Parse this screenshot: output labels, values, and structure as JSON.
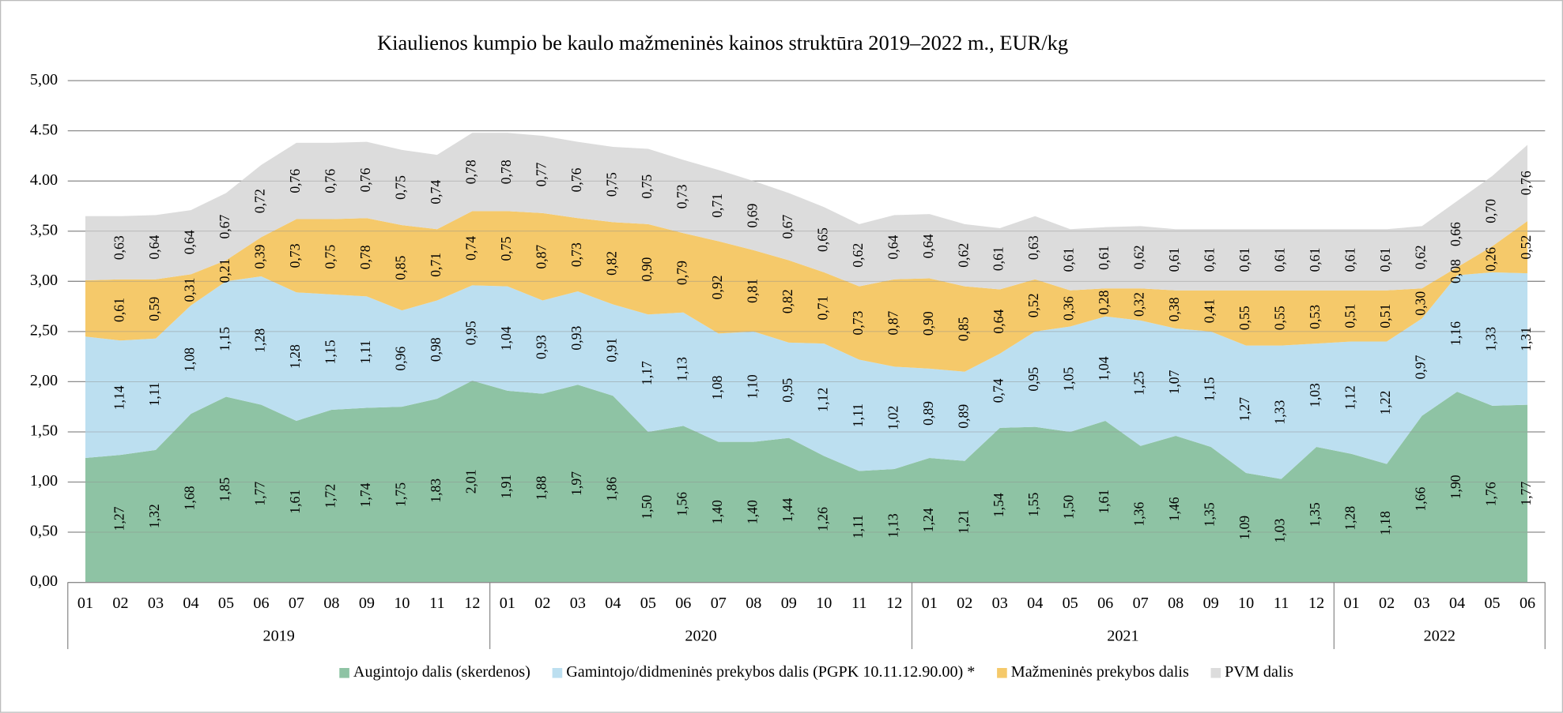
{
  "chart_data": {
    "type": "stacked_area",
    "title": "Kiaulienos kumpio be kaulo mažmeninės kainos struktūra 2019–2022 m., EUR/kg",
    "categories": [
      "01",
      "02",
      "03",
      "04",
      "05",
      "06",
      "07",
      "08",
      "09",
      "10",
      "11",
      "12",
      "01",
      "02",
      "03",
      "04",
      "05",
      "06",
      "07",
      "08",
      "09",
      "10",
      "11",
      "12",
      "01",
      "02",
      "03",
      "04",
      "05",
      "06",
      "07",
      "08",
      "09",
      "10",
      "11",
      "12",
      "01",
      "02",
      "03",
      "04",
      "05",
      "06"
    ],
    "years": [
      "2019",
      "2020",
      "2021",
      "2022"
    ],
    "ylim": [
      0,
      5
    ],
    "yticks": [
      {
        "value": 0,
        "label": "0,00"
      },
      {
        "value": 0.5,
        "label": "0,50"
      },
      {
        "value": 1,
        "label": "1,00"
      },
      {
        "value": 1.5,
        "label": "1,50"
      },
      {
        "value": 2,
        "label": "2,00"
      },
      {
        "value": 2.5,
        "label": "2,50"
      },
      {
        "value": 3,
        "label": "3,00"
      },
      {
        "value": 3.5,
        "label": "3,50"
      },
      {
        "value": 4,
        "label": "4.00"
      },
      {
        "value": 4.5,
        "label": "4.50"
      },
      {
        "value": 5,
        "label": "5,00"
      }
    ],
    "grid": true,
    "legend": "bottom",
    "series": [
      {
        "name": "Augintojo dalis (skerdenos)",
        "color": "#8ec3a4",
        "values": [
          1.24,
          1.27,
          1.32,
          1.68,
          1.85,
          1.77,
          1.61,
          1.72,
          1.74,
          1.75,
          1.83,
          2.01,
          1.91,
          1.88,
          1.97,
          1.86,
          1.5,
          1.56,
          1.4,
          1.4,
          1.44,
          1.26,
          1.11,
          1.13,
          1.24,
          1.21,
          1.54,
          1.55,
          1.5,
          1.61,
          1.36,
          1.46,
          1.35,
          1.09,
          1.03,
          1.35,
          1.28,
          1.18,
          1.66,
          1.9,
          1.76,
          1.77
        ],
        "value_labels": [
          null,
          "1,27",
          "1,32",
          "1,68",
          "1,85",
          "1,77",
          "1,61",
          "1,72",
          "1,74",
          "1,75",
          "1,83",
          "2,01",
          "1,91",
          "1,88",
          "1,97",
          "1,86",
          "1,50",
          "1,56",
          "1,40",
          "1,40",
          "1,44",
          "1,26",
          "1,11",
          "1,13",
          "1,24",
          "1,21",
          "1,54",
          "1,55",
          "1,50",
          "1,61",
          "1,36",
          "1,46",
          "1,35",
          "1,09",
          "1,03",
          "1,35",
          "1,28",
          "1,18",
          "1,66",
          "1,90",
          "1,76",
          "1,77"
        ]
      },
      {
        "name": "Gamintojo/didmeninės prekybos dalis (PGPK 10.11.12.90.00) *",
        "color": "#bcdff0",
        "values": [
          1.21,
          1.14,
          1.11,
          1.08,
          1.15,
          1.28,
          1.28,
          1.15,
          1.11,
          0.96,
          0.98,
          0.95,
          1.04,
          0.93,
          0.93,
          0.91,
          1.17,
          1.13,
          1.08,
          1.1,
          0.95,
          1.12,
          1.11,
          1.02,
          0.89,
          0.89,
          0.74,
          0.95,
          1.05,
          1.04,
          1.25,
          1.07,
          1.15,
          1.27,
          1.33,
          1.03,
          1.12,
          1.22,
          0.97,
          1.16,
          1.33,
          1.31
        ],
        "value_labels": [
          null,
          "1,14",
          "1,11",
          "1,08",
          "1,15",
          "1,28",
          "1,28",
          "1,15",
          "1,11",
          "0,96",
          "0,98",
          "0,95",
          "1,04",
          "0,93",
          "0,93",
          "0,91",
          "1,17",
          "1,13",
          "1,08",
          "1,10",
          "0,95",
          "1,12",
          "1,11",
          "1,02",
          "0,89",
          "0,89",
          "0,74",
          "0,95",
          "1,05",
          "1,04",
          "1,25",
          "1,07",
          "1,15",
          "1,27",
          "1,33",
          "1,03",
          "1,12",
          "1,22",
          "0,97",
          "1,16",
          "1,33",
          "1,31"
        ]
      },
      {
        "name": "Mažmeninės prekybos dalis",
        "color": "#f5c96a",
        "values": [
          0.56,
          0.61,
          0.59,
          0.31,
          0.21,
          0.39,
          0.73,
          0.75,
          0.78,
          0.85,
          0.71,
          0.74,
          0.75,
          0.87,
          0.73,
          0.82,
          0.9,
          0.79,
          0.92,
          0.81,
          0.82,
          0.71,
          0.73,
          0.87,
          0.9,
          0.85,
          0.64,
          0.52,
          0.36,
          0.28,
          0.32,
          0.38,
          0.41,
          0.55,
          0.55,
          0.53,
          0.51,
          0.51,
          0.3,
          0.08,
          0.26,
          0.52
        ],
        "value_labels": [
          null,
          "0,61",
          "0,59",
          "0,31",
          "0,21",
          "0,39",
          "0,73",
          "0,75",
          "0,78",
          "0,85",
          "0,71",
          "0,74",
          "0,75",
          "0,87",
          "0,73",
          "0,82",
          "0,90",
          "0,79",
          "0,92",
          "0,81",
          "0,82",
          "0,71",
          "0,73",
          "0,87",
          "0,90",
          "0,85",
          "0,64",
          "0,52",
          "0,36",
          "0,28",
          "0,32",
          "0,38",
          "0,41",
          "0,55",
          "0,55",
          "0,53",
          "0,51",
          "0,51",
          "0,30",
          "0,08",
          "0,26",
          "0,52"
        ]
      },
      {
        "name": "PVM dalis",
        "color": "#dcdcdc",
        "values": [
          0.64,
          0.63,
          0.64,
          0.64,
          0.67,
          0.72,
          0.76,
          0.76,
          0.76,
          0.75,
          0.74,
          0.78,
          0.78,
          0.77,
          0.76,
          0.75,
          0.75,
          0.73,
          0.71,
          0.69,
          0.67,
          0.65,
          0.62,
          0.64,
          0.64,
          0.62,
          0.61,
          0.63,
          0.61,
          0.61,
          0.62,
          0.61,
          0.61,
          0.61,
          0.61,
          0.61,
          0.61,
          0.61,
          0.62,
          0.66,
          0.7,
          0.76
        ],
        "value_labels": [
          null,
          "0,63",
          "0,64",
          "0,64",
          "0,67",
          "0,72",
          "0,76",
          "0,76",
          "0,76",
          "0,75",
          "0,74",
          "0,78",
          "0,78",
          "0,77",
          "0,76",
          "0,75",
          "0,75",
          "0,73",
          "0,71",
          "0,69",
          "0,67",
          "0,65",
          "0,62",
          "0,64",
          "0,64",
          "0,62",
          "0,61",
          "0,63",
          "0,61",
          "0,61",
          "0,62",
          "0,61",
          "0,61",
          "0,61",
          "0,61",
          "0,61",
          "0,61",
          "0,61",
          "0,62",
          "0,66",
          "0,70",
          "0,76"
        ]
      }
    ]
  }
}
